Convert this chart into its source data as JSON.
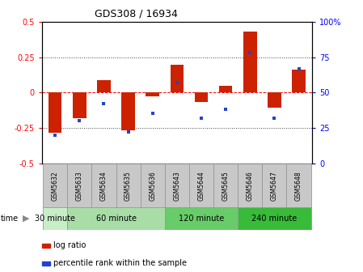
{
  "title": "GDS308 / 16934",
  "samples": [
    "GSM5632",
    "GSM5633",
    "GSM5634",
    "GSM5635",
    "GSM5636",
    "GSM5643",
    "GSM5644",
    "GSM5645",
    "GSM5646",
    "GSM5647",
    "GSM5648"
  ],
  "log_ratio": [
    -0.285,
    -0.18,
    0.09,
    -0.27,
    -0.025,
    0.195,
    -0.07,
    0.045,
    0.43,
    -0.11,
    0.16
  ],
  "percentile": [
    20,
    30,
    42,
    22,
    35,
    57,
    32,
    38,
    78,
    32,
    67
  ],
  "group_indices": [
    [
      0
    ],
    [
      1,
      2,
      3,
      4
    ],
    [
      5,
      6,
      7
    ],
    [
      8,
      9,
      10
    ]
  ],
  "group_colors": [
    "#c8eec8",
    "#a8dda8",
    "#68cc68",
    "#38bb38"
  ],
  "group_labels": [
    "30 minute",
    "60 minute",
    "120 minute",
    "240 minute"
  ],
  "ylim_left": [
    -0.5,
    0.5
  ],
  "ylim_right": [
    0,
    100
  ],
  "yticks_left": [
    -0.5,
    -0.25,
    0,
    0.25,
    0.5
  ],
  "yticks_right": [
    0,
    25,
    50,
    75,
    100
  ],
  "bar_color": "#cc2200",
  "dot_color": "#2244cc",
  "sample_box_color": "#c8c8c8"
}
